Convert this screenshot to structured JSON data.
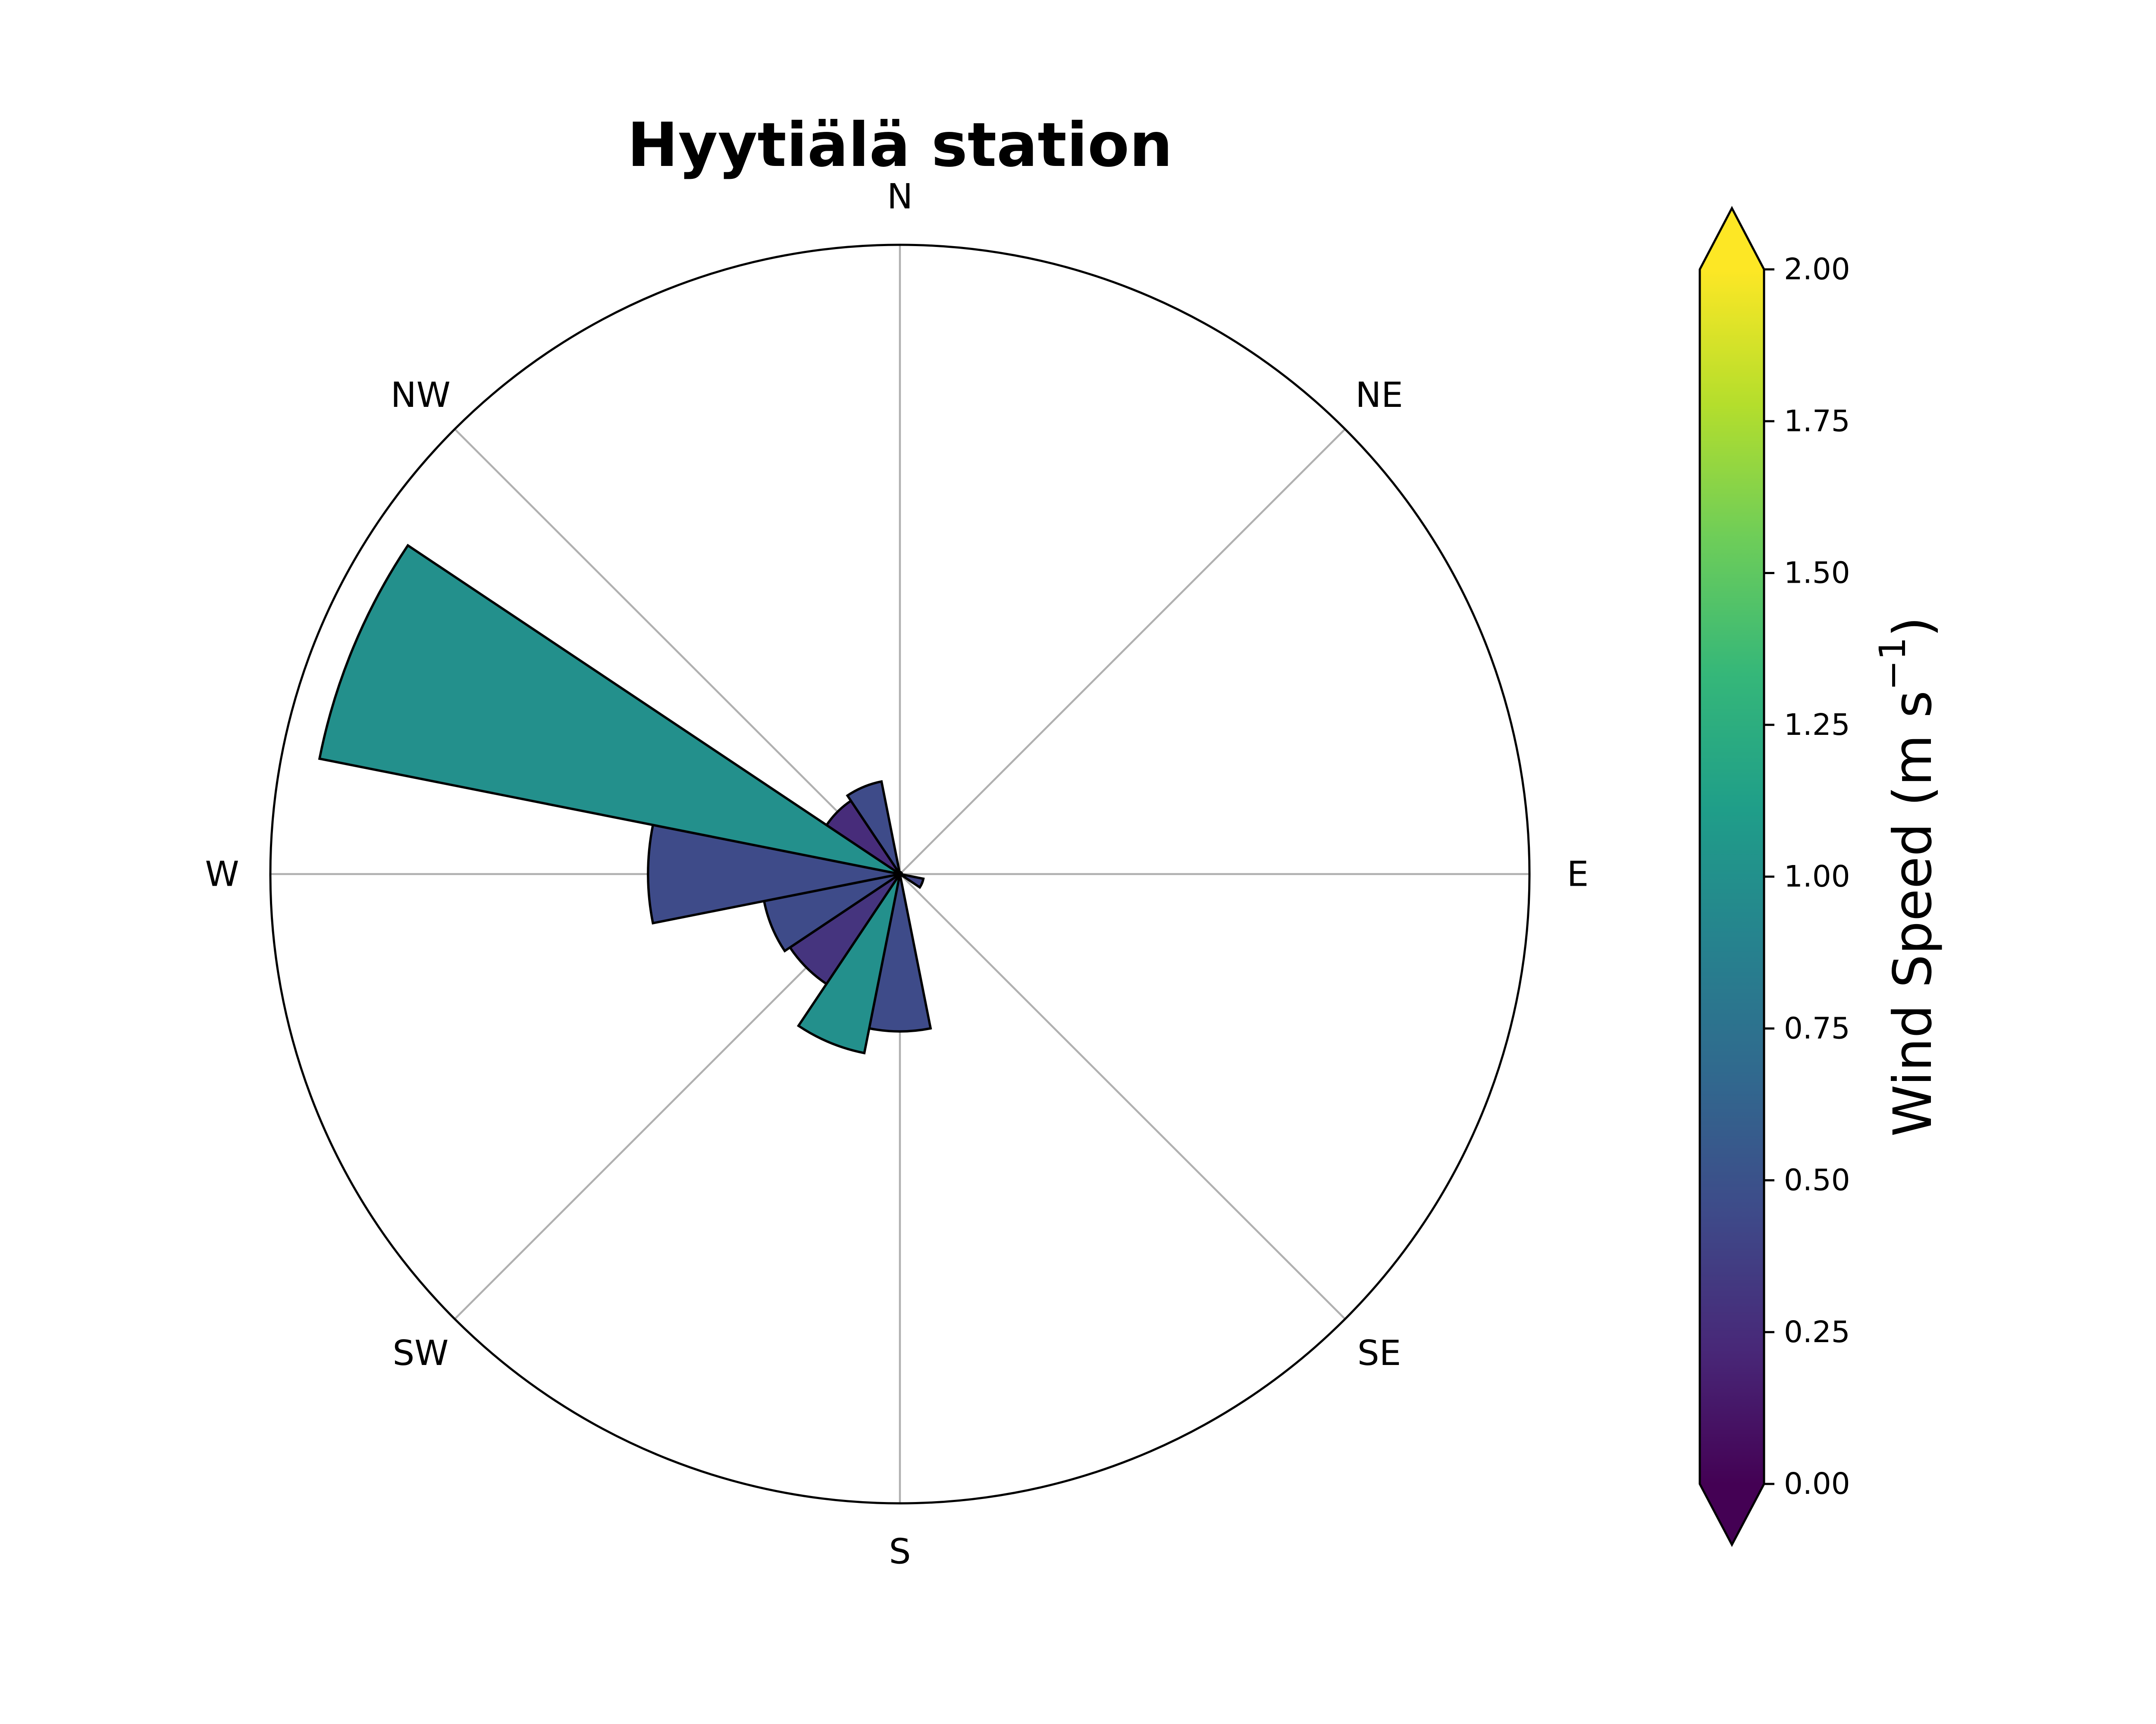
{
  "chart_data": {
    "type": "windrose",
    "title": "Hyytiälä station",
    "direction_labels": [
      "N",
      "NE",
      "E",
      "SE",
      "S",
      "SW",
      "W",
      "NW"
    ],
    "radial_max": 1.0,
    "bars": [
      {
        "direction_deg": 0,
        "radius": 0.003,
        "speed": 0.4
      },
      {
        "direction_deg": 22.5,
        "radius": 0.003,
        "speed": 0.4
      },
      {
        "direction_deg": 45,
        "radius": 0.003,
        "speed": 0.4
      },
      {
        "direction_deg": 67.5,
        "radius": 0.003,
        "speed": 0.4
      },
      {
        "direction_deg": 90,
        "radius": 0.003,
        "speed": 0.4
      },
      {
        "direction_deg": 112.5,
        "radius": 0.038,
        "speed": 0.4
      },
      {
        "direction_deg": 135,
        "radius": 0.003,
        "speed": 0.4
      },
      {
        "direction_deg": 157.5,
        "radius": 0.003,
        "speed": 0.4
      },
      {
        "direction_deg": 180,
        "radius": 0.25,
        "speed": 0.45
      },
      {
        "direction_deg": 202.5,
        "radius": 0.29,
        "speed": 1.0
      },
      {
        "direction_deg": 225,
        "radius": 0.21,
        "speed": 0.3
      },
      {
        "direction_deg": 247.5,
        "radius": 0.22,
        "speed": 0.45
      },
      {
        "direction_deg": 270,
        "radius": 0.4,
        "speed": 0.45
      },
      {
        "direction_deg": 292.5,
        "radius": 0.94,
        "speed": 1.0
      },
      {
        "direction_deg": 315,
        "radius": 0.14,
        "speed": 0.25
      },
      {
        "direction_deg": 337.5,
        "radius": 0.15,
        "speed": 0.45
      }
    ],
    "colorbar": {
      "label": "Wind Speed (m s",
      "label_sup": "−1",
      "label_close": ")",
      "vmin": 0,
      "vmax": 2,
      "ticks": [
        "0.00",
        "0.25",
        "0.50",
        "0.75",
        "1.00",
        "1.25",
        "1.50",
        "1.75",
        "2.00"
      ],
      "colormap": "viridis",
      "extend": "both"
    },
    "grid": true
  }
}
